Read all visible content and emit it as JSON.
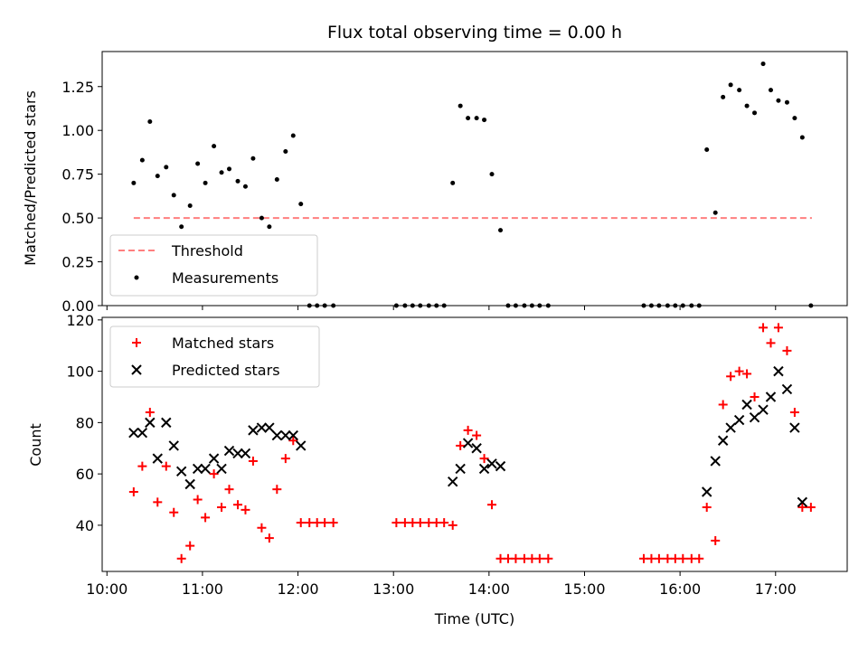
{
  "chart_data": [
    {
      "type": "scatter",
      "title": "Flux total observing time = 0.00 h",
      "xlabel": "",
      "ylabel": "Matched/Predicted stars",
      "xlim": [
        9.95,
        17.75
      ],
      "ylim": [
        0,
        1.45
      ],
      "xticks": [
        10,
        11,
        12,
        13,
        14,
        15,
        16,
        17
      ],
      "yticks": [
        0.0,
        0.25,
        0.5,
        0.75,
        1.0,
        1.25
      ],
      "ytick_labels": [
        "0.00",
        "0.25",
        "0.50",
        "0.75",
        "1.00",
        "1.25"
      ],
      "threshold": {
        "name": "Threshold",
        "value": 0.5,
        "x": [
          10.28,
          17.38
        ],
        "color": "#ff7f7f"
      },
      "measurements": {
        "name": "Measurements",
        "color": "#000000",
        "x": [
          10.28,
          10.37,
          10.45,
          10.53,
          10.62,
          10.7,
          10.78,
          10.87,
          10.95,
          11.03,
          11.12,
          11.2,
          11.28,
          11.37,
          11.45,
          11.53,
          11.62,
          11.7,
          11.78,
          11.87,
          11.95,
          12.03,
          12.12,
          12.2,
          12.28,
          12.37,
          13.03,
          13.12,
          13.2,
          13.28,
          13.37,
          13.45,
          13.53,
          13.62,
          13.7,
          13.78,
          13.87,
          13.95,
          14.03,
          14.12,
          14.2,
          14.28,
          14.37,
          14.45,
          14.53,
          14.62,
          15.62,
          15.7,
          15.78,
          15.87,
          15.95,
          16.03,
          16.12,
          16.2,
          16.28,
          16.37,
          16.45,
          16.53,
          16.62,
          16.7,
          16.78,
          16.87,
          16.95,
          17.03,
          17.12,
          17.2,
          17.28,
          17.37
        ],
        "y": [
          0.7,
          0.83,
          1.05,
          0.74,
          0.79,
          0.63,
          0.45,
          0.57,
          0.81,
          0.7,
          0.91,
          0.76,
          0.78,
          0.71,
          0.68,
          0.84,
          0.5,
          0.45,
          0.72,
          0.88,
          0.97,
          0.58,
          0,
          0,
          0,
          0,
          0,
          0,
          0,
          0,
          0,
          0,
          0,
          0.7,
          1.14,
          1.07,
          1.07,
          1.06,
          0.75,
          0.43,
          0,
          0,
          0,
          0,
          0,
          0,
          0,
          0,
          0,
          0,
          0,
          0,
          0,
          0,
          0.89,
          0.53,
          1.19,
          1.26,
          1.23,
          1.14,
          1.1,
          1.38,
          1.23,
          1.17,
          1.16,
          1.07,
          0.96,
          0
        ]
      },
      "legend": [
        "Threshold",
        "Measurements"
      ],
      "legend_loc": "lower-left"
    },
    {
      "type": "scatter",
      "title": "",
      "xlabel": "Time (UTC)",
      "ylabel": "Count",
      "xlim": [
        9.95,
        17.75
      ],
      "ylim": [
        22,
        121
      ],
      "xticks": [
        10,
        11,
        12,
        13,
        14,
        15,
        16,
        17
      ],
      "xtick_labels": [
        "10:00",
        "11:00",
        "12:00",
        "13:00",
        "14:00",
        "15:00",
        "16:00",
        "17:00"
      ],
      "yticks": [
        40,
        60,
        80,
        100,
        120
      ],
      "ytick_labels": [
        "40",
        "60",
        "80",
        "100",
        "120"
      ],
      "series": [
        {
          "name": "Matched stars",
          "marker": "plus",
          "color": "#ff0000",
          "x": [
            10.28,
            10.37,
            10.45,
            10.53,
            10.62,
            10.7,
            10.78,
            10.87,
            10.95,
            11.03,
            11.12,
            11.2,
            11.28,
            11.37,
            11.45,
            11.53,
            11.62,
            11.7,
            11.78,
            11.87,
            11.95,
            12.03,
            12.12,
            12.2,
            12.28,
            12.37,
            13.03,
            13.12,
            13.2,
            13.28,
            13.37,
            13.45,
            13.53,
            13.62,
            13.7,
            13.78,
            13.87,
            13.95,
            14.03,
            14.12,
            14.2,
            14.28,
            14.37,
            14.45,
            14.53,
            14.62,
            15.62,
            15.7,
            15.78,
            15.87,
            15.95,
            16.03,
            16.12,
            16.2,
            16.28,
            16.37,
            16.45,
            16.53,
            16.62,
            16.7,
            16.78,
            16.87,
            16.95,
            17.03,
            17.12,
            17.2,
            17.28,
            17.37
          ],
          "y": [
            53,
            63,
            84,
            49,
            63,
            45,
            27,
            32,
            50,
            43,
            60,
            47,
            54,
            48,
            46,
            65,
            39,
            35,
            54,
            66,
            73,
            41,
            41,
            41,
            41,
            41,
            41,
            41,
            41,
            41,
            41,
            41,
            41,
            40,
            71,
            77,
            75,
            66,
            48,
            27,
            27,
            27,
            27,
            27,
            27,
            27,
            27,
            27,
            27,
            27,
            27,
            27,
            27,
            27,
            47,
            34,
            87,
            98,
            100,
            99,
            90,
            117,
            111,
            117,
            108,
            84,
            47,
            47
          ]
        },
        {
          "name": "Predicted stars",
          "marker": "x",
          "color": "#000000",
          "x": [
            10.28,
            10.37,
            10.45,
            10.53,
            10.62,
            10.7,
            10.78,
            10.87,
            10.95,
            11.03,
            11.12,
            11.2,
            11.28,
            11.37,
            11.45,
            11.53,
            11.62,
            11.7,
            11.78,
            11.87,
            11.95,
            12.03,
            13.62,
            13.7,
            13.78,
            13.87,
            13.95,
            14.03,
            14.12,
            16.28,
            16.37,
            16.45,
            16.53,
            16.62,
            16.7,
            16.78,
            16.87,
            16.95,
            17.03,
            17.12,
            17.2,
            17.28
          ],
          "y": [
            76,
            76,
            80,
            66,
            80,
            71,
            61,
            56,
            62,
            62,
            66,
            62,
            69,
            68,
            68,
            77,
            78,
            78,
            75,
            75,
            75,
            71,
            57,
            62,
            72,
            70,
            62,
            64,
            63,
            53,
            65,
            73,
            78,
            81,
            87,
            82,
            85,
            90,
            100,
            93,
            78,
            49
          ]
        }
      ],
      "legend": [
        "Matched stars",
        "Predicted stars"
      ],
      "legend_loc": "upper-left"
    }
  ]
}
